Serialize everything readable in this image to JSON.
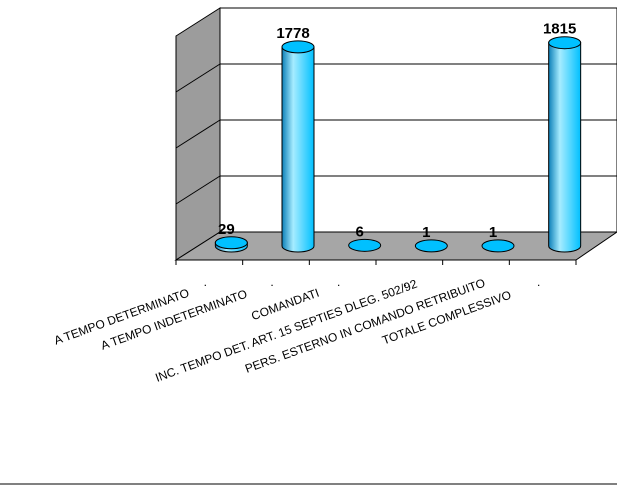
{
  "chart_data": {
    "type": "bar",
    "categories": [
      "A TEMPO DETERMINATO",
      "A TEMPO INDETERMINATO",
      "COMANDATI",
      "INC. TEMPO DET. ART. 15 SEPTIES DLEG. 502/92",
      "PERS. ESTERNO IN COMANDO RETRIBUITO",
      "TOTALE COMPLESSIVO"
    ],
    "values": [
      29,
      1778,
      6,
      1,
      1,
      1815
    ],
    "data_labels": [
      "29",
      "1778",
      "6",
      "1",
      "1",
      "1815"
    ],
    "ylim": [
      0,
      2000
    ],
    "grid": true,
    "legend": "none",
    "style": "3d-cylinder",
    "colors": {
      "bar": "#00c0ff",
      "bar_dark": "#0c7fb8",
      "bar_light": "#a6ecff",
      "floor": "#a6a6a6",
      "wall": "#ffffff",
      "side_wall": "#9c9c9c"
    }
  }
}
